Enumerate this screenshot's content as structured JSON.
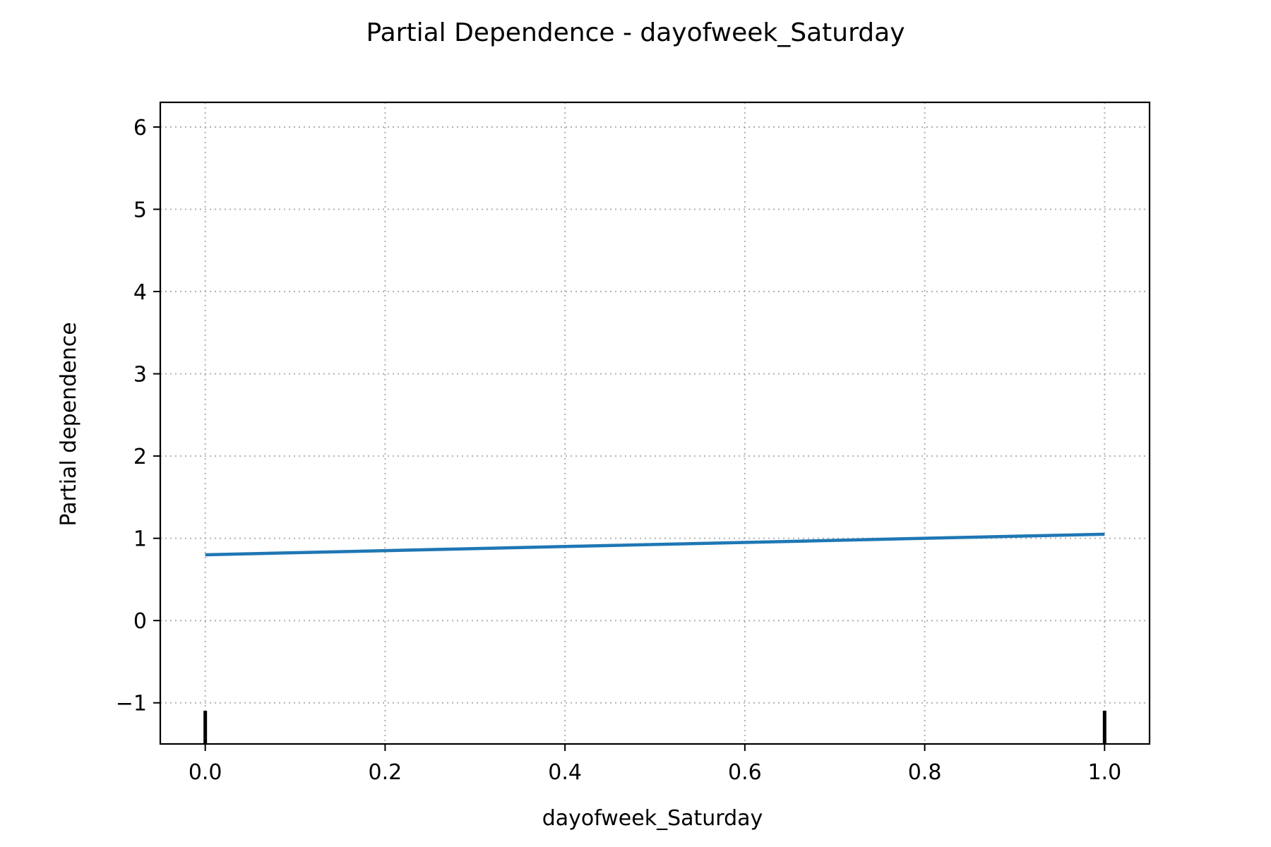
{
  "chart_data": {
    "type": "line",
    "title": "Partial Dependence - dayofweek_Saturday",
    "xlabel": "dayofweek_Saturday",
    "ylabel": "Partial dependence",
    "xlim": [
      -0.05,
      1.05
    ],
    "ylim": [
      -1.5,
      6.3
    ],
    "xticks": [
      0.0,
      0.2,
      0.4,
      0.6,
      0.8,
      1.0
    ],
    "xtick_labels": [
      "0.0",
      "0.2",
      "0.4",
      "0.6",
      "0.8",
      "1.0"
    ],
    "yticks": [
      -1,
      0,
      1,
      2,
      3,
      4,
      5,
      6
    ],
    "ytick_labels": [
      "−1",
      "0",
      "1",
      "2",
      "3",
      "4",
      "5",
      "6"
    ],
    "grid": true,
    "series": [
      {
        "x": [
          0.0,
          1.0
        ],
        "y": [
          0.8,
          1.05
        ],
        "color": "#1f77b4"
      }
    ],
    "rug": {
      "x": [
        0.0,
        1.0
      ],
      "color": "#000000"
    }
  }
}
